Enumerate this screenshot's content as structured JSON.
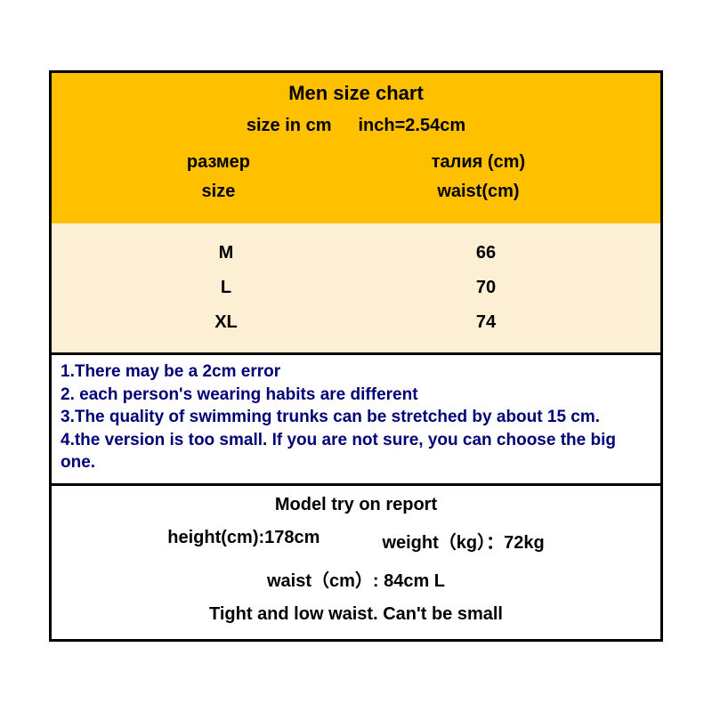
{
  "header": {
    "title": "Men  size chart",
    "subtitle_left": "size  in cm",
    "subtitle_right": "inch=2.54cm",
    "col1_ru": "размер",
    "col1_en": "size",
    "col2_ru": "талия  (cm)",
    "col2_en": "waist(cm)"
  },
  "rows": [
    {
      "size": "M",
      "waist": "66"
    },
    {
      "size": "L",
      "waist": "70"
    },
    {
      "size": "XL",
      "waist": "74"
    }
  ],
  "notes": {
    "n1": "1.There may be a 2cm error",
    "n2": "2. each person's wearing habits are different",
    "n3": "3.The quality of swimming trunks can be stretched by about 15 cm.",
    "n4": "4.the version is too small. If you are not sure, you can choose the big one."
  },
  "model": {
    "title": "Model try on report",
    "height_label": "height(cm):178cm",
    "weight_label": "weight（kg）：72kg",
    "waist_label": "waist（cm）: 84cm   L",
    "note": "Tight and low waist. Can't be small"
  },
  "colors": {
    "header_bg": "#ffc000",
    "data_bg": "#fdefd3",
    "border": "#000000",
    "notes_text": "#000077"
  }
}
